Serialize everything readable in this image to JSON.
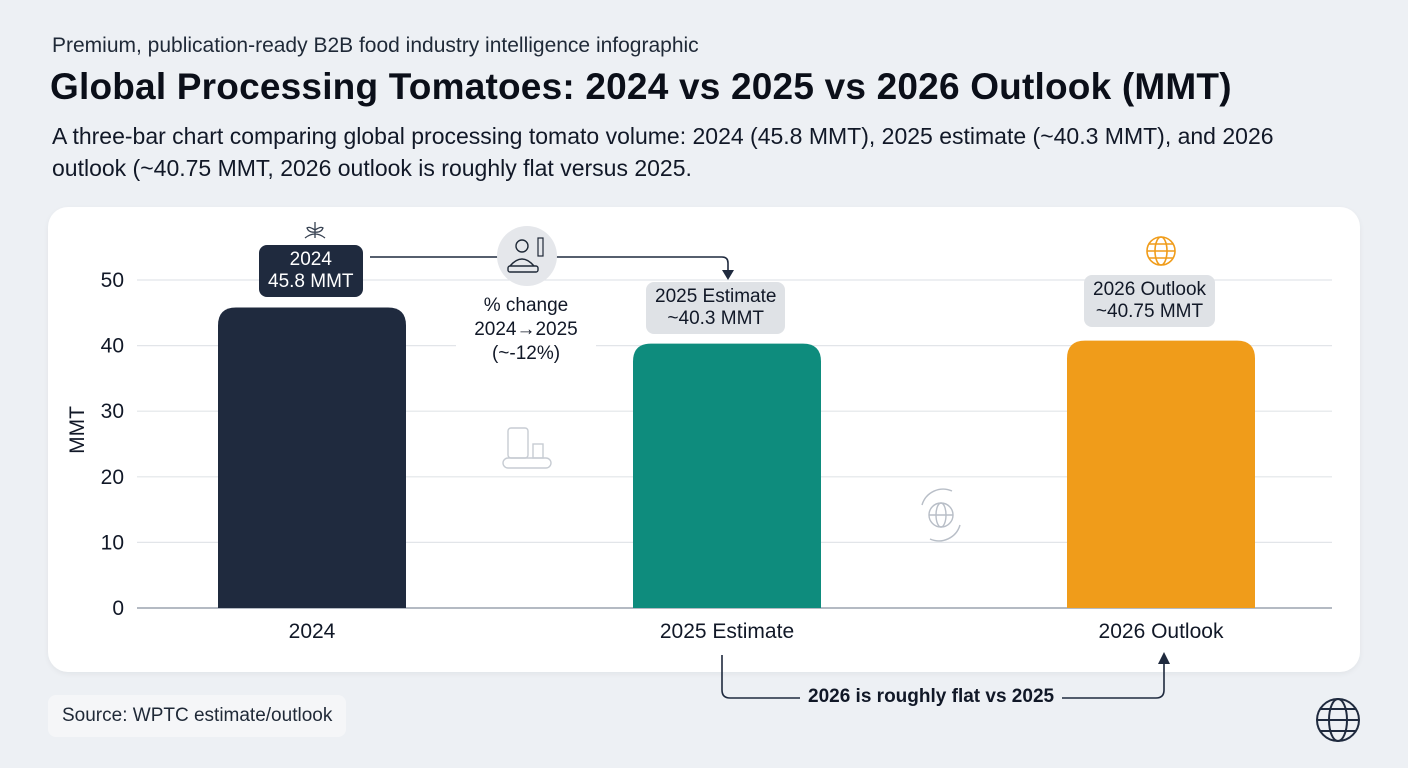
{
  "header": {
    "kicker": "Premium, publication-ready B2B food industry intelligence infographic",
    "title": "Global Processing Tomatoes: 2024 vs 2025 vs 2026 Outlook (MMT)",
    "subtitle": "A three-bar chart comparing global processing tomato volume: 2024 (45.8 MMT), 2025 estimate (~40.3 MMT), and 2026 outlook (~40.75 MMT, 2026 outlook is roughly flat versus 2025."
  },
  "chart_data": {
    "type": "bar",
    "categories": [
      "2024",
      "2025 Estimate",
      "2026 Outlook"
    ],
    "values": [
      45.8,
      40.3,
      40.75
    ],
    "colors": [
      "#1f2a3e",
      "#0e8c7d",
      "#f09c1a"
    ],
    "ylabel": "MMT",
    "ylim": [
      0,
      50
    ],
    "yticks": [
      0,
      10,
      20,
      30,
      40,
      50
    ],
    "grid": true,
    "data_labels": [
      {
        "line1": "2024",
        "line2": "45.8 MMT"
      },
      {
        "line1": "2025 Estimate",
        "line2": "~40.3 MMT"
      },
      {
        "line1": "2026 Outlook",
        "line2": "~40.75 MMT"
      }
    ],
    "annotations": {
      "change": [
        "% change",
        "2024→2025",
        "(~-12%)"
      ],
      "flat": "2026 is roughly flat vs 2025"
    }
  },
  "icons": [
    "sprout-icon",
    "worker-processing-icon",
    "factory-conveyor-icon",
    "globe-cycle-icon",
    "globe-icon"
  ],
  "footer": {
    "source": "Source: WPTC estimate/outlook"
  }
}
